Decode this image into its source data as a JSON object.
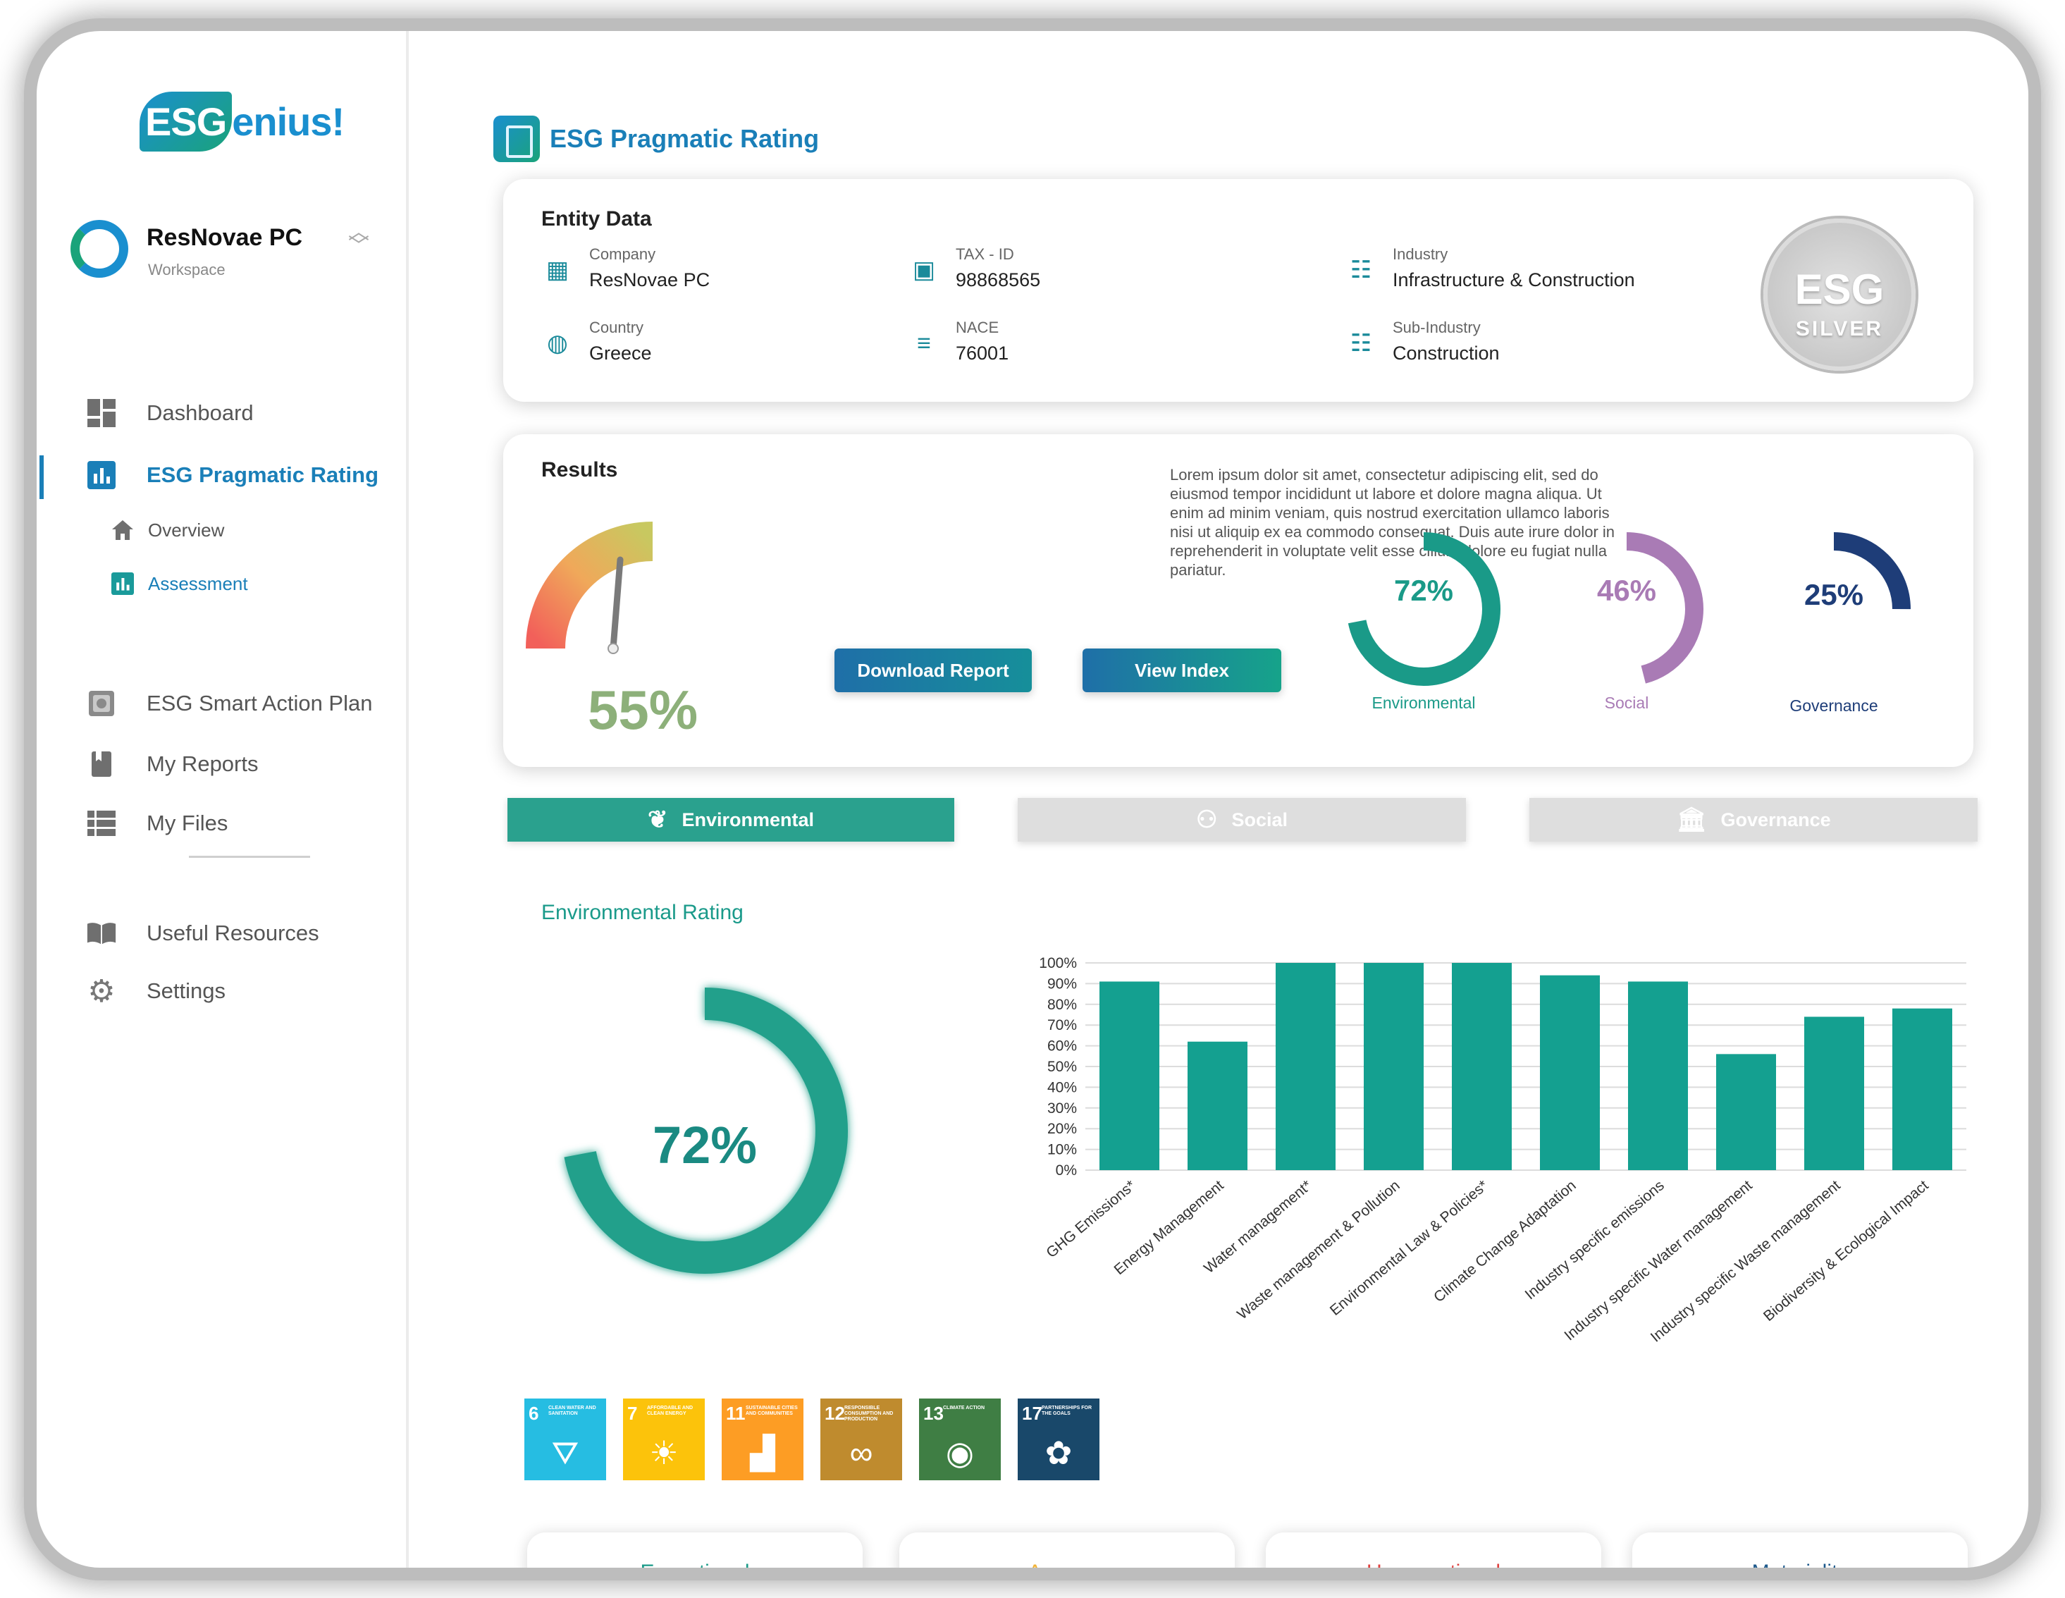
{
  "brand": {
    "logo_esg": "ESG",
    "logo_rest": "enius!"
  },
  "workspace": {
    "name": "ResNovae PC",
    "subtitle": "Workspace"
  },
  "sidebar": {
    "items": [
      {
        "label": "Dashboard",
        "icon": "dashboard-icon"
      },
      {
        "label": "ESG Pragmatic Rating",
        "icon": "bar-chart-icon"
      },
      {
        "label": "Overview",
        "icon": "home-icon"
      },
      {
        "label": "Assessment",
        "icon": "bar-chart-icon"
      },
      {
        "label": "ESG Smart Action Plan",
        "icon": "action-plan-icon"
      },
      {
        "label": "My Reports",
        "icon": "bookmark-icon"
      },
      {
        "label": "My Files",
        "icon": "list-icon"
      },
      {
        "label": "Useful Resources",
        "icon": "book-icon"
      },
      {
        "label": "Settings",
        "icon": "gear-icon"
      }
    ]
  },
  "page": {
    "title": "ESG Pragmatic Rating"
  },
  "entity": {
    "title": "Entity Data",
    "fields": [
      {
        "label": "Company",
        "value": "ResNovae PC",
        "icon": "building-icon"
      },
      {
        "label": "TAX - ID",
        "value": "98868565",
        "icon": "id-card-icon"
      },
      {
        "label": "Industry",
        "value": "Infrastructure & Construction",
        "icon": "document-icon"
      },
      {
        "label": "Country",
        "value": "Greece",
        "icon": "globe-icon"
      },
      {
        "label": "NACE",
        "value": "76001",
        "icon": "menu-icon"
      },
      {
        "label": "Sub-Industry",
        "value": "Construction",
        "icon": "document-icon"
      }
    ],
    "badge": {
      "top": "ESG",
      "bottom": "SILVER"
    }
  },
  "results": {
    "title": "Results",
    "overall_value": "55%",
    "overall_fraction": 0.55,
    "description": "Lorem ipsum dolor sit amet, consectetur adipiscing elit, sed do eiusmod tempor incididunt ut labore et dolore magna aliqua. Ut enim ad minim veniam, quis nostrud exercitation ullamco laboris nisi ut aliquip ex ea commodo consequat. Duis aute irure dolor in reprehenderit in voluptate velit esse cillum dolore eu fugiat nulla pariatur.",
    "download_label": "Download Report",
    "index_label": "View Index",
    "rings": [
      {
        "label": "Environmental",
        "value": "72%",
        "fraction": 0.72,
        "color": "#1a9a88"
      },
      {
        "label": "Social",
        "value": "46%",
        "fraction": 0.46,
        "color": "#a97bb5"
      },
      {
        "label": "Governance",
        "value": "25%",
        "fraction": 0.25,
        "color": "#1e3d78"
      }
    ]
  },
  "tabs": [
    {
      "label": "Environmental",
      "icon": "plant-hand-icon",
      "active": true
    },
    {
      "label": "Social",
      "icon": "people-icon",
      "active": false
    },
    {
      "label": "Governance",
      "icon": "institution-icon",
      "active": false
    }
  ],
  "environmental": {
    "rating_title": "Environmental Rating",
    "value": "72%",
    "fraction": 0.72
  },
  "chart_data": {
    "type": "bar",
    "categories": [
      "GHG Emissions*",
      "Energy Management",
      "Water management*",
      "Waste management & Pollution",
      "Environmental Law & Policies*",
      "Climate Change Adaptation",
      "Industry specific emissions",
      "Industry specific Water management",
      "Industry specific Waste management",
      "Biodiversity & Ecological Impact"
    ],
    "values": [
      91,
      62,
      100,
      100,
      100,
      94,
      91,
      56,
      74,
      78
    ],
    "y_ticks": [
      "0%",
      "10%",
      "20%",
      "30%",
      "40%",
      "50%",
      "60%",
      "70%",
      "80%",
      "90%",
      "100%"
    ],
    "ylim": [
      0,
      100
    ],
    "grid": true,
    "bar_color": "#14a090"
  },
  "sdgs": [
    {
      "num": "6",
      "text": "CLEAN WATER AND SANITATION",
      "color": "#26bde2",
      "glyph": "⛛"
    },
    {
      "num": "7",
      "text": "AFFORDABLE AND CLEAN ENERGY",
      "color": "#fcc30b",
      "glyph": "☀"
    },
    {
      "num": "11",
      "text": "SUSTAINABLE CITIES AND COMMUNITIES",
      "color": "#fd9d24",
      "glyph": "▟"
    },
    {
      "num": "12",
      "text": "RESPONSIBLE CONSUMPTION AND PRODUCTION",
      "color": "#bf8b2e",
      "glyph": "∞"
    },
    {
      "num": "13",
      "text": "CLIMATE ACTION",
      "color": "#3f7e44",
      "glyph": "◉"
    },
    {
      "num": "17",
      "text": "PARTNERSHIPS FOR THE GOALS",
      "color": "#19486a",
      "glyph": "✿"
    }
  ],
  "footer_cards": [
    {
      "label": "Exceptional",
      "color": "#1a9a88"
    },
    {
      "label": "Average",
      "color": "#f2b233"
    },
    {
      "label": "Unexceptional",
      "color": "#e0413f"
    },
    {
      "label": "Materiality",
      "color": "#1e5a8c"
    }
  ]
}
